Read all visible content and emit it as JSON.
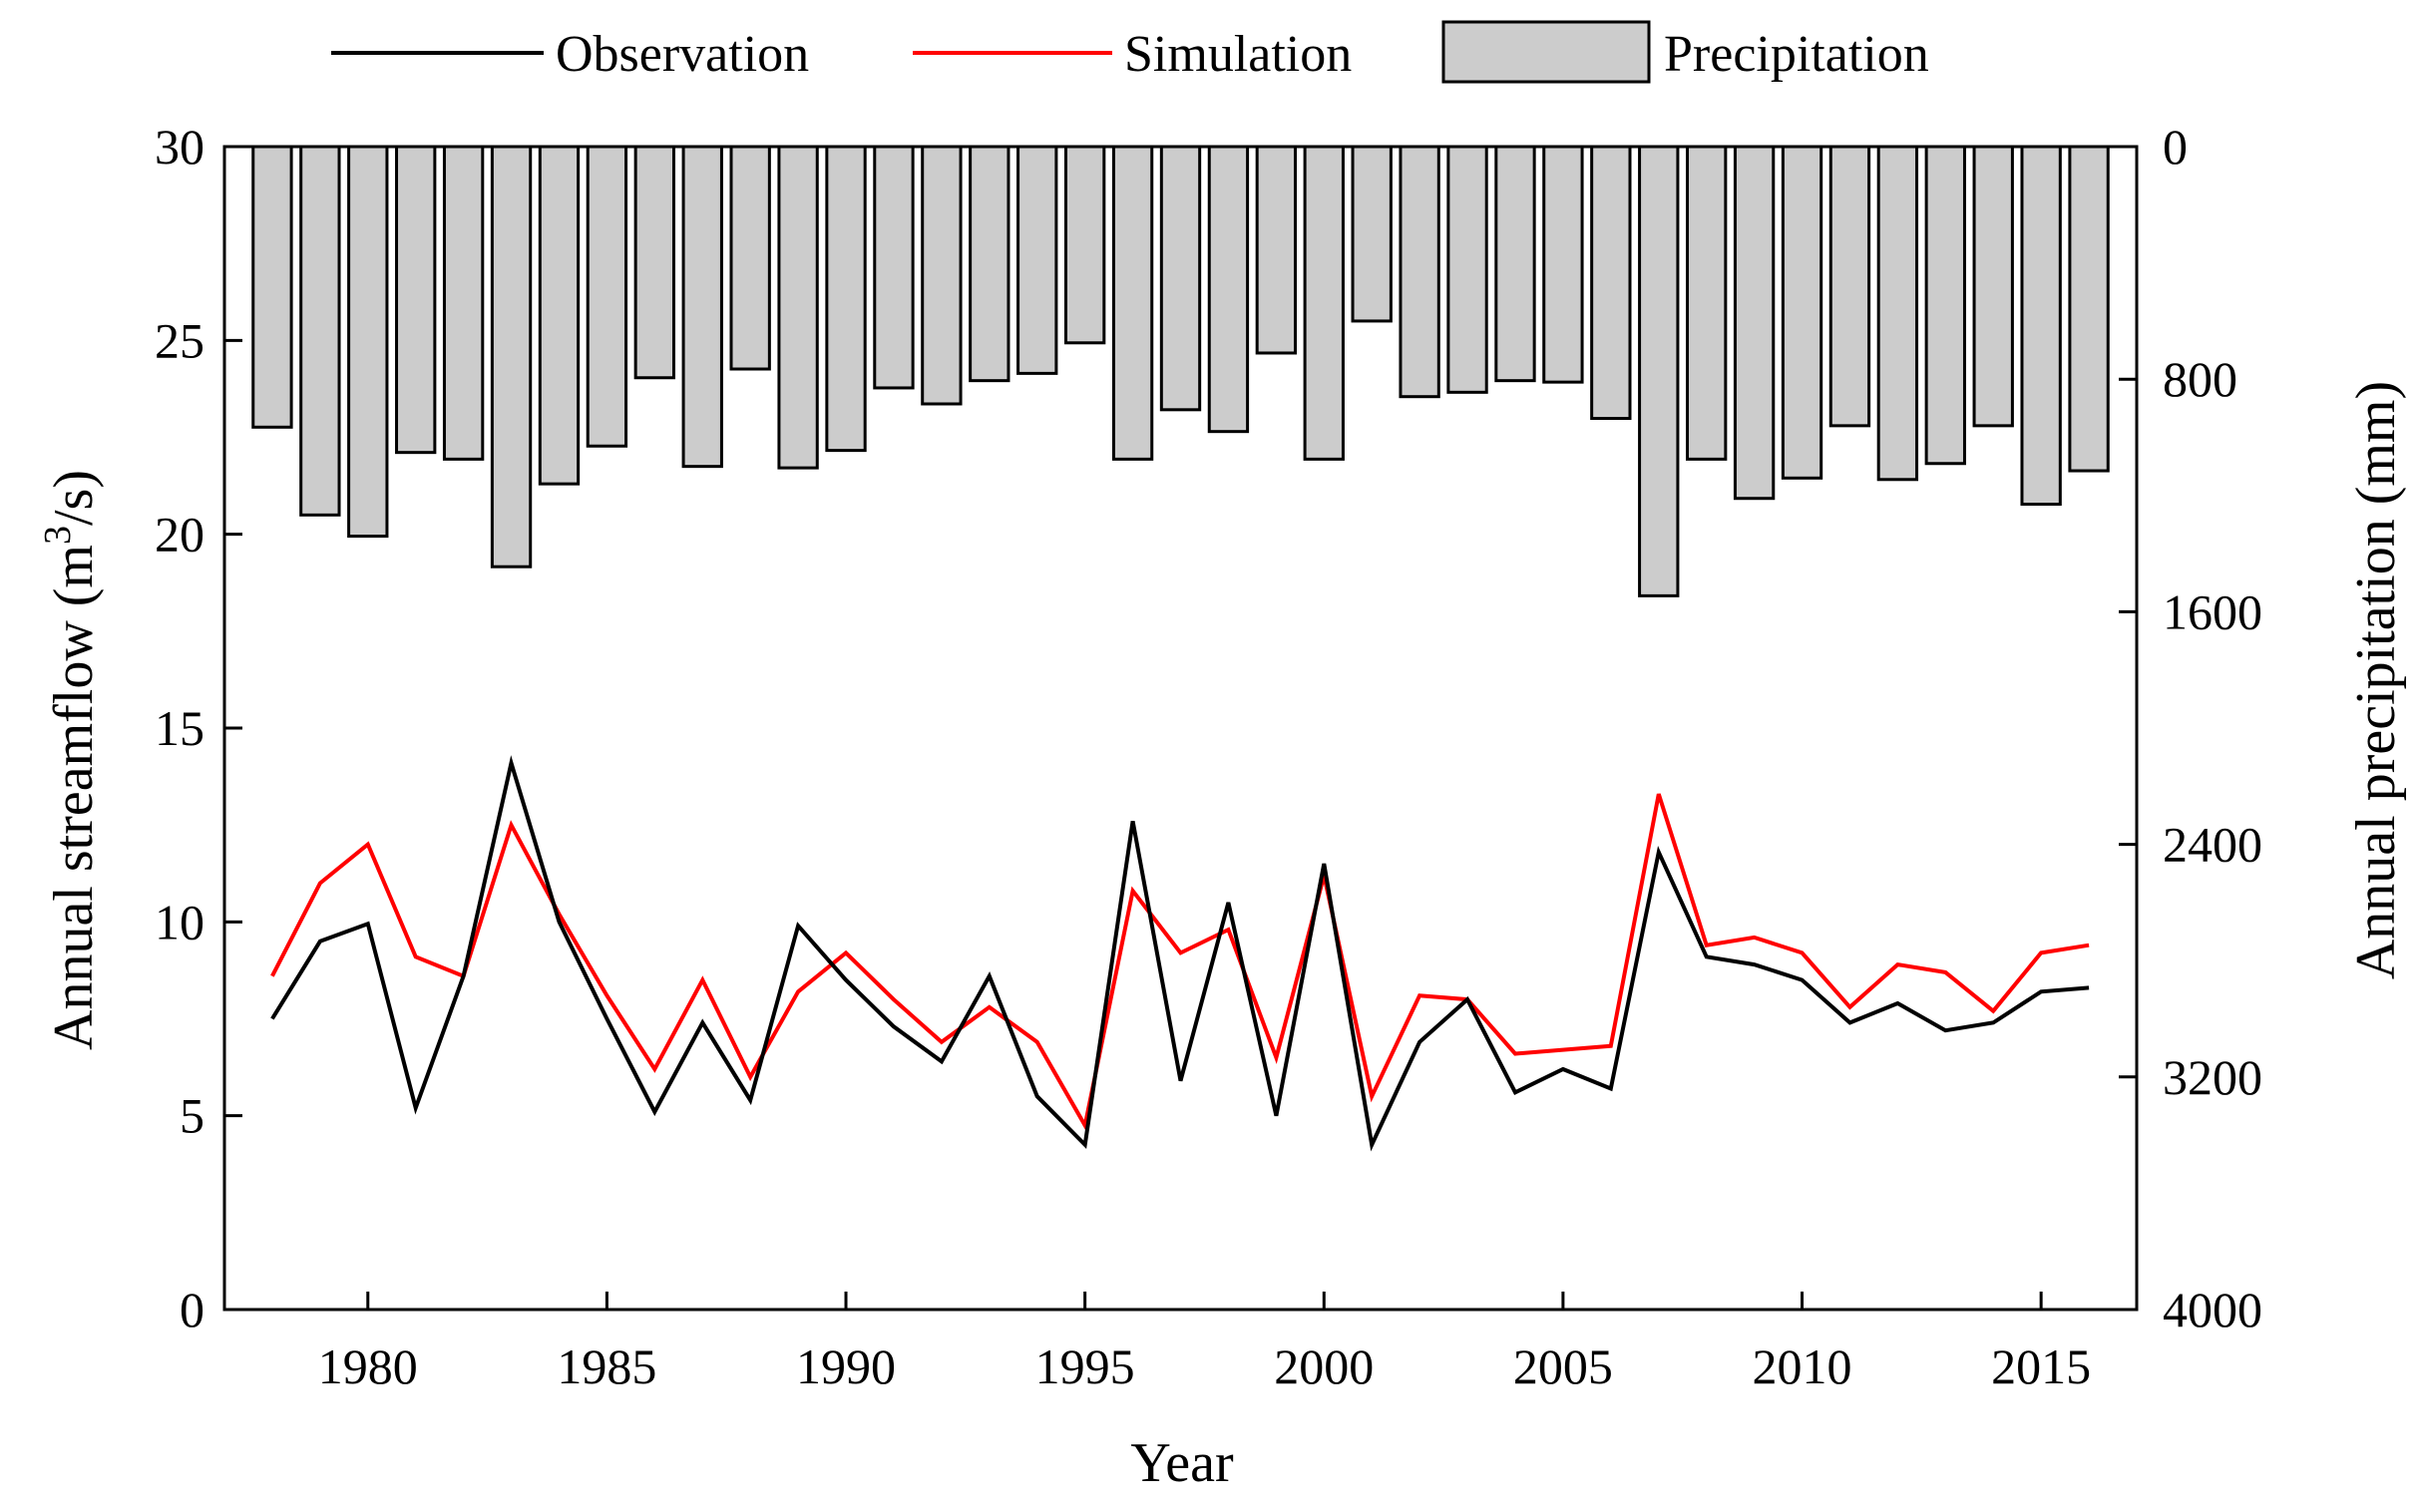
{
  "chart_data": {
    "type": "line+bar",
    "xlabel": "Year",
    "ylabel_left": "Annual streamflow (m³/s)",
    "ylabel_left_parts": {
      "base": "Annual streamflow (m",
      "sup": "3",
      "tail": "/s)"
    },
    "ylabel_right": "Annual precipitation (mm)",
    "xlim": [
      1977,
      2017
    ],
    "ylim_left": [
      0,
      30
    ],
    "ylim_right": [
      0,
      4000
    ],
    "right_axis_inverted": true,
    "x_ticks": [
      1980,
      1985,
      1990,
      1995,
      2000,
      2005,
      2010,
      2015
    ],
    "y_left_ticks": [
      0,
      5,
      10,
      15,
      20,
      25,
      30
    ],
    "y_right_ticks": [
      0,
      800,
      1600,
      2400,
      3200,
      4000
    ],
    "grid": false,
    "legend_position": "top",
    "years": [
      1978,
      1979,
      1980,
      1981,
      1982,
      1983,
      1984,
      1985,
      1986,
      1987,
      1988,
      1989,
      1990,
      1991,
      1992,
      1993,
      1994,
      1995,
      1996,
      1997,
      1998,
      1999,
      2000,
      2001,
      2002,
      2003,
      2004,
      2005,
      2006,
      2007,
      2008,
      2009,
      2010,
      2011,
      2012,
      2013,
      2014,
      2015,
      2016
    ],
    "series": [
      {
        "name": "Observation",
        "kind": "line",
        "axis": "left",
        "color": "#000000",
        "values": [
          7.5,
          9.5,
          9.95,
          5.2,
          8.6,
          14.1,
          10.0,
          7.5,
          5.1,
          7.4,
          5.4,
          9.9,
          8.5,
          7.3,
          6.4,
          8.6,
          5.5,
          4.25,
          12.6,
          5.9,
          10.5,
          5.0,
          11.5,
          4.25,
          6.9,
          8.0,
          5.6,
          6.2,
          5.7,
          11.8,
          9.1,
          8.9,
          8.5,
          7.4,
          7.9,
          7.2,
          7.4,
          8.2,
          8.3
        ]
      },
      {
        "name": "Simulation",
        "kind": "line",
        "axis": "left",
        "color": "#ff0000",
        "values": [
          8.6,
          11.0,
          12.0,
          9.1,
          8.6,
          12.5,
          10.2,
          8.1,
          6.2,
          8.5,
          6.0,
          8.2,
          9.2,
          8.0,
          6.9,
          7.8,
          6.9,
          4.75,
          10.8,
          9.2,
          9.8,
          6.5,
          11.2,
          5.5,
          8.1,
          8.0,
          6.6,
          6.7,
          6.8,
          13.3,
          9.4,
          9.6,
          9.2,
          7.8,
          8.9,
          8.7,
          7.7,
          9.2,
          9.4
        ]
      },
      {
        "name": "Precipitation",
        "kind": "bar",
        "axis": "right",
        "color": "#cccccc",
        "values": [
          965,
          1267,
          1340,
          1052,
          1075,
          1445,
          1160,
          1030,
          795,
          1100,
          765,
          1105,
          1045,
          830,
          885,
          805,
          780,
          675,
          1075,
          905,
          980,
          710,
          1075,
          600,
          860,
          845,
          805,
          810,
          935,
          1545,
          1075,
          1210,
          1140,
          960,
          1145,
          1090,
          960,
          1230,
          1115
        ]
      }
    ]
  }
}
